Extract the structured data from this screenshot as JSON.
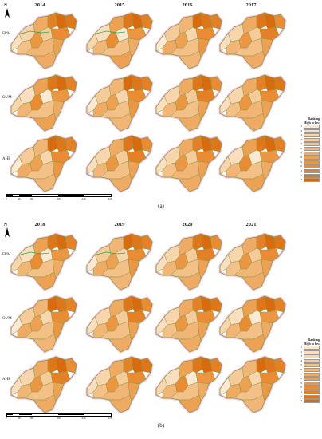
{
  "figure": {
    "panels": [
      {
        "id": "a",
        "caption": "(a)",
        "years": [
          "2014",
          "2015",
          "2016",
          "2017"
        ],
        "methods": [
          "FRM",
          "OVM",
          "AHP"
        ],
        "north_label": "N",
        "legend": {
          "title_line1": "Ranking",
          "title_line2": "High to low",
          "ranks": [
            "1",
            "2",
            "3",
            "4",
            "5",
            "6",
            "7",
            "8",
            "9",
            "10",
            "11",
            "12",
            "13"
          ]
        },
        "scalebar": {
          "ticks": [
            "0",
            "40",
            "80",
            "160",
            "240",
            "320"
          ]
        }
      },
      {
        "id": "b",
        "caption": "(b)",
        "years": [
          "2018",
          "2019",
          "2020",
          "2021"
        ],
        "methods": [
          "FRM",
          "OVM",
          "AHP"
        ],
        "north_label": "N",
        "legend": {
          "title_line1": "Ranking",
          "title_line2": "High to low",
          "ranks": [
            "1",
            "2",
            "3",
            "4",
            "5",
            "6",
            "7",
            "8",
            "9",
            "10",
            "11",
            "12",
            "13"
          ]
        },
        "scalebar": {
          "ticks": [
            "0",
            "40",
            "80",
            "160",
            "240",
            "320"
          ]
        }
      }
    ],
    "colors": {
      "rank_scale": [
        "#fbe9d4",
        "#f9dfc0",
        "#f7d5ad",
        "#f5cb9a",
        "#f3c088",
        "#f1b676",
        "#efab64",
        "#eda153",
        "#eb9643",
        "#e98c34",
        "#e48126",
        "#df7619",
        "#d96b0e"
      ],
      "boundary": "#8a9a4a",
      "halo": "#f6c8e8",
      "river": "#2fa84f"
    }
  }
}
